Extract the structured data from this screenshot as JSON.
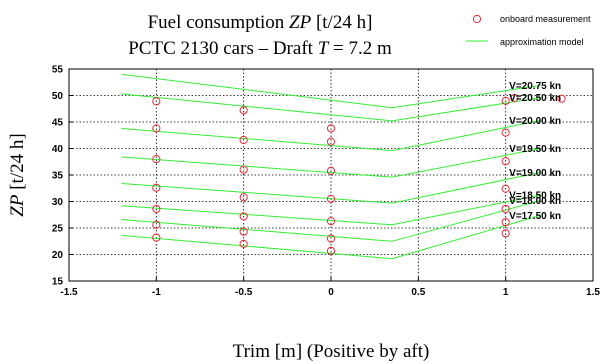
{
  "chart_data": {
    "type": "line",
    "title": {
      "line1_prefix": "Fuel consumption ",
      "line1_symbol": "ZP",
      "line1_suffix": " [t/24 h]",
      "line2_prefix": "PCTC 2130 cars – Draft ",
      "line2_symbol": "T",
      "line2_suffix": " = 7.2 m"
    },
    "xlabel": "Trim [m] (Positive by aft)",
    "ylabel": {
      "symbol": "ZP",
      "unit": " [t/24 h]"
    },
    "xlim": [
      -1.5,
      1.5
    ],
    "ylim": [
      15,
      55
    ],
    "xticks": [
      -1.5,
      -1,
      -0.5,
      0,
      0.5,
      1,
      1.5
    ],
    "xtick_labels": [
      "-1.5",
      "-1",
      "-0.5",
      "0",
      "0.5",
      "1",
      "1.5"
    ],
    "yticks": [
      15,
      20,
      25,
      30,
      35,
      40,
      45,
      50,
      55
    ],
    "ytick_labels": [
      "15",
      "20",
      "25",
      "30",
      "35",
      "40",
      "45",
      "50",
      "55"
    ],
    "grid": true,
    "legend": {
      "placement": "top-right",
      "entries": [
        {
          "label": "onboard measurement",
          "marker": "circle",
          "color": "#e0303a"
        },
        {
          "label": "approximation model",
          "marker": "line",
          "color": "#33ee33"
        }
      ]
    },
    "colors": {
      "measurement": "#e0303a",
      "model": "#33ee33",
      "grid": "#000000"
    },
    "model_x": [
      -1.2,
      0.35,
      1.2
    ],
    "model_series": [
      {
        "label": "V=17.50 kn",
        "y": [
          23.6,
          19.2,
          27.4
        ]
      },
      {
        "label": "V=18.00 kn",
        "y": [
          26.6,
          22.5,
          30.2
        ]
      },
      {
        "label": "V=18.50 kn",
        "y": [
          29.2,
          25.6,
          31.2
        ]
      },
      {
        "label": "V=19.00 kn",
        "y": [
          33.4,
          29.7,
          35.5
        ]
      },
      {
        "label": "V=19.50 kn",
        "y": [
          38.4,
          34.6,
          40.0
        ]
      },
      {
        "label": "V=20.00 kn",
        "y": [
          43.8,
          39.6,
          45.3
        ]
      },
      {
        "label": "V=20.50 kn",
        "y": [
          50.3,
          45.2,
          49.6
        ]
      },
      {
        "label": "V=20.75 kn",
        "y": [
          54.0,
          47.7,
          51.9
        ]
      }
    ],
    "measurements": [
      {
        "x": -1,
        "y": 48.9
      },
      {
        "x": -1,
        "y": 43.8
      },
      {
        "x": -1,
        "y": 38.0
      },
      {
        "x": -1,
        "y": 32.6
      },
      {
        "x": -1,
        "y": 28.6
      },
      {
        "x": -1,
        "y": 25.6
      },
      {
        "x": -1,
        "y": 23.2
      },
      {
        "x": -0.5,
        "y": 47.2
      },
      {
        "x": -0.5,
        "y": 41.6
      },
      {
        "x": -0.5,
        "y": 36.0
      },
      {
        "x": -0.5,
        "y": 30.8
      },
      {
        "x": -0.5,
        "y": 27.2
      },
      {
        "x": -0.5,
        "y": 24.3
      },
      {
        "x": -0.5,
        "y": 22.0
      },
      {
        "x": 0,
        "y": 43.8
      },
      {
        "x": 0,
        "y": 41.3
      },
      {
        "x": 0,
        "y": 35.8
      },
      {
        "x": 0,
        "y": 30.5
      },
      {
        "x": 0,
        "y": 26.3
      },
      {
        "x": 0,
        "y": 23.0
      },
      {
        "x": 0,
        "y": 20.7
      },
      {
        "x": 1,
        "y": 49.0
      },
      {
        "x": 1,
        "y": 43.0
      },
      {
        "x": 1,
        "y": 37.6
      },
      {
        "x": 1,
        "y": 32.4
      },
      {
        "x": 1,
        "y": 28.6
      },
      {
        "x": 1,
        "y": 26.1
      },
      {
        "x": 1,
        "y": 24.0
      },
      {
        "x": 1.05,
        "y": 49.5
      },
      {
        "x": 1.32,
        "y": 49.4
      }
    ]
  }
}
